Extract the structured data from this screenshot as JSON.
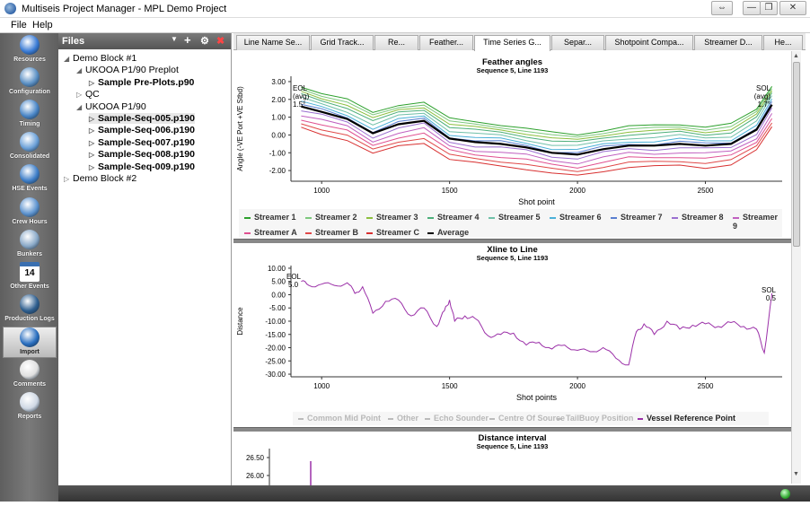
{
  "window": {
    "title": "Multiseis Project Manager - MPL Demo Project",
    "minimize": "—",
    "maximize": "❐",
    "close": "✕",
    "restore": "⇔"
  },
  "menu": [
    "File",
    "Help"
  ],
  "sidebar": [
    {
      "label": "Resources",
      "icon": "resources-icon",
      "color": "#3a7bd5"
    },
    {
      "label": "Configuration",
      "icon": "configuration-icon",
      "color": "#5a8fc4"
    },
    {
      "label": "Timing",
      "icon": "timing-icon",
      "color": "#4a86c7"
    },
    {
      "label": "Consolidated",
      "icon": "consolidated-icon",
      "color": "#6ba0d8"
    },
    {
      "label": "HSE Events",
      "icon": "hse-events-icon",
      "color": "#3f7fc9"
    },
    {
      "label": "Crew Hours",
      "icon": "crew-hours-icon",
      "color": "#5d93cf"
    },
    {
      "label": "Bunkers",
      "icon": "bunkers-icon",
      "color": "#8aa9c8"
    },
    {
      "label": "Other Events",
      "icon": "calendar-icon",
      "color": "#ffffff"
    },
    {
      "label": "Production Logs",
      "icon": "production-logs-icon",
      "color": "#2f5f8f"
    },
    {
      "label": "Import",
      "icon": "import-icon",
      "color": "#2a6fc0"
    },
    {
      "label": "Comments",
      "icon": "comments-icon",
      "color": "#e0e0e0"
    },
    {
      "label": "Reports",
      "icon": "reports-icon",
      "color": "#cfd8e4"
    }
  ],
  "calendar_day": "14",
  "files": {
    "title": "Files",
    "tree": [
      {
        "label": "Demo Block #1",
        "level": 0,
        "arrow": "◢",
        "bold": false
      },
      {
        "label": "UKOOA P1/90 Preplot",
        "level": 1,
        "arrow": "◢",
        "bold": false
      },
      {
        "label": "Sample Pre-Plots.p90",
        "level": 2,
        "arrow": "▷",
        "bold": true
      },
      {
        "label": "QC",
        "level": 1,
        "arrow": "▷",
        "bold": false
      },
      {
        "label": "UKOOA P1/90",
        "level": 1,
        "arrow": "◢",
        "bold": false
      },
      {
        "label": "Sample-Seq-005.p190",
        "level": 2,
        "arrow": "▷",
        "bold": true,
        "selected": true
      },
      {
        "label": "Sample-Seq-006.p190",
        "level": 2,
        "arrow": "▷",
        "bold": true
      },
      {
        "label": "Sample-Seq-007.p190",
        "level": 2,
        "arrow": "▷",
        "bold": true
      },
      {
        "label": "Sample-Seq-008.p190",
        "level": 2,
        "arrow": "▷",
        "bold": true
      },
      {
        "label": "Sample-Seq-009.p190",
        "level": 2,
        "arrow": "▷",
        "bold": true
      },
      {
        "label": "Demo Block #2",
        "level": 0,
        "arrow": "▷",
        "bold": false
      }
    ]
  },
  "tabs": [
    "Line Name Se...",
    "Grid Track...",
    "Re...",
    "Feather...",
    "Time Series G...",
    "Separ...",
    "Shotpoint Compa...",
    "Streamer D...",
    "He..."
  ],
  "active_tab": 4,
  "chart_data": [
    {
      "type": "line",
      "title": "Feather angles",
      "subtitle": "Sequence 5, Line 1193",
      "xlabel": "Shot point",
      "ylabel": "Angle (-VE Port +VE Stbd)",
      "xlim": [
        880,
        2800
      ],
      "ylim": [
        -2.6,
        3.3
      ],
      "xticks": [
        1000,
        1500,
        2000,
        2500
      ],
      "yticks": [
        3.0,
        2.0,
        1.0,
        0.0,
        -1.0,
        -2.0
      ],
      "ytick_labels": [
        "3.00",
        "2.00",
        "1.00",
        "0.00",
        "-1.00",
        "-2.00"
      ],
      "annotations": [
        {
          "text": "EOL",
          "line2": "(avg)",
          "line3": "1.5°"
        },
        {
          "text": "SOL",
          "line2": "(avg)",
          "line3": "1.7°"
        }
      ],
      "base_x": [
        920,
        1000,
        1100,
        1200,
        1300,
        1400,
        1500,
        1600,
        1700,
        1800,
        1900,
        2000,
        2100,
        2200,
        2300,
        2400,
        2500,
        2600,
        2700,
        2760
      ],
      "base_y": [
        1.6,
        1.3,
        0.9,
        0.1,
        0.6,
        0.8,
        -0.2,
        -0.4,
        -0.5,
        -0.7,
        -1.0,
        -1.1,
        -0.8,
        -0.6,
        -0.6,
        -0.5,
        -0.6,
        -0.5,
        0.3,
        1.7
      ],
      "series": [
        {
          "name": "Streamer 1",
          "color": "#2ca02c",
          "offset": 1.1
        },
        {
          "name": "Streamer 2",
          "color": "#7dc87d",
          "offset": 0.95
        },
        {
          "name": "Streamer 3",
          "color": "#8cbf3f",
          "offset": 0.8
        },
        {
          "name": "Streamer 4",
          "color": "#4caf7a",
          "offset": 0.65
        },
        {
          "name": "Streamer 5",
          "color": "#6fc0a8",
          "offset": 0.45
        },
        {
          "name": "Streamer 6",
          "color": "#4ab0d8",
          "offset": 0.25
        },
        {
          "name": "Streamer 7",
          "color": "#5a7fd0",
          "offset": 0.1
        },
        {
          "name": "Streamer 8",
          "color": "#9a6fd0",
          "offset": -0.2
        },
        {
          "name": "Streamer 9",
          "color": "#c060c0",
          "offset": -0.45
        },
        {
          "name": "Streamer A",
          "color": "#e05090",
          "offset": -0.7
        },
        {
          "name": "Streamer B",
          "color": "#e04848",
          "offset": -0.95
        },
        {
          "name": "Streamer C",
          "color": "#d83030",
          "offset": -1.2
        },
        {
          "name": "Average",
          "color": "#000000",
          "offset": 0
        }
      ]
    },
    {
      "type": "line",
      "title": "Xline to Line",
      "subtitle": "Sequence 5, Line 1193",
      "xlabel": "Shot points",
      "ylabel": "Distance",
      "xlim": [
        880,
        2800
      ],
      "ylim": [
        -31,
        11
      ],
      "xticks": [
        1000,
        1500,
        2000,
        2500
      ],
      "yticks": [
        10,
        5,
        0,
        -5,
        -10,
        -15,
        -20,
        -25,
        -30
      ],
      "ytick_labels": [
        "10.00",
        "5.00",
        "0.00",
        "-5.00",
        "-10.00",
        "-15.00",
        "-20.00",
        "-25.00",
        "-30.00"
      ],
      "annotations": [
        {
          "text": "EOL",
          "line2": "5.0"
        },
        {
          "text": "SOL",
          "line2": "0.5"
        }
      ],
      "x": [
        920,
        950,
        1000,
        1050,
        1100,
        1130,
        1160,
        1200,
        1250,
        1300,
        1350,
        1400,
        1450,
        1480,
        1500,
        1520,
        1560,
        1600,
        1650,
        1700,
        1750,
        1800,
        1850,
        1900,
        1950,
        2000,
        2050,
        2100,
        2150,
        2200,
        2230,
        2260,
        2300,
        2350,
        2400,
        2450,
        2500,
        2550,
        2600,
        2650,
        2700,
        2730,
        2760
      ],
      "y": [
        5.0,
        3.5,
        4.0,
        3.5,
        4.5,
        0.5,
        3.0,
        -7.0,
        -2.5,
        -2.0,
        -8.0,
        -5.0,
        -12.0,
        -6.0,
        -2.0,
        -10.0,
        -8.0,
        -9.0,
        -15.5,
        -15.0,
        -14.5,
        -19.0,
        -18.0,
        -20.5,
        -19.0,
        -21.0,
        -21.5,
        -20.0,
        -24.0,
        -26.5,
        -14.0,
        -11.0,
        -15.0,
        -10.0,
        -13.0,
        -11.5,
        -11.0,
        -12.0,
        -10.5,
        -12.0,
        -13.0,
        -22.0,
        0.5
      ],
      "series": [
        {
          "name": "Common Mid Point",
          "color": "#bbbbbb",
          "enabled": false
        },
        {
          "name": "Other",
          "color": "#bbbbbb",
          "enabled": false
        },
        {
          "name": "Echo Sounder",
          "color": "#bbbbbb",
          "enabled": false
        },
        {
          "name": "Centre Of Source",
          "color": "#bbbbbb",
          "enabled": false
        },
        {
          "name": "TailBuoy Position",
          "color": "#bbbbbb",
          "enabled": false
        },
        {
          "name": "Vessel Reference Point",
          "color": "#9b30a8",
          "enabled": true
        }
      ]
    },
    {
      "type": "bar",
      "title": "Distance interval",
      "subtitle": "Sequence 5, Line 1193",
      "yticks": [
        26.5,
        26.0
      ],
      "ytick_labels": [
        "26.50",
        "26.00"
      ],
      "bars": [
        {
          "x": 1000,
          "value": 26.4
        }
      ]
    }
  ],
  "status": {
    "led_color": "#33aa33"
  }
}
